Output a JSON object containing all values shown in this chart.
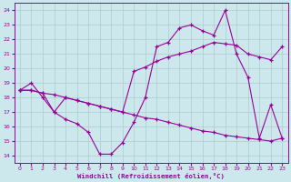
{
  "xlabel": "Windchill (Refroidissement éolien,°C)",
  "xlim": [
    -0.5,
    23.5
  ],
  "ylim": [
    13.5,
    24.5
  ],
  "xticks": [
    0,
    1,
    2,
    3,
    4,
    5,
    6,
    7,
    8,
    9,
    10,
    11,
    12,
    13,
    14,
    15,
    16,
    17,
    18,
    19,
    20,
    21,
    22,
    23
  ],
  "yticks": [
    14,
    15,
    16,
    17,
    18,
    19,
    20,
    21,
    22,
    23,
    24
  ],
  "bg_color": "#cde8ec",
  "line_color": "#990099",
  "grid_color": "#aacccc",
  "line1_x": [
    0,
    1,
    2,
    3,
    4,
    5,
    6,
    7,
    8,
    9,
    10,
    11,
    12,
    13,
    14,
    15,
    16,
    17,
    18,
    19,
    20,
    21,
    22,
    23
  ],
  "line1_y": [
    18.5,
    19.0,
    18.0,
    17.0,
    16.5,
    16.2,
    15.6,
    14.1,
    14.1,
    14.9,
    16.3,
    18.0,
    21.5,
    21.8,
    22.8,
    23.0,
    22.6,
    22.3,
    24.0,
    21.0,
    19.4,
    15.2,
    17.5,
    15.2
  ],
  "line2_x": [
    0,
    1,
    2,
    3,
    4,
    5,
    6,
    7,
    8,
    9,
    10,
    11,
    12,
    13,
    14,
    15,
    16,
    17,
    18,
    19,
    20,
    21,
    22,
    23
  ],
  "line2_y": [
    18.5,
    18.5,
    18.3,
    18.2,
    18.0,
    17.8,
    17.6,
    17.4,
    17.2,
    17.0,
    16.8,
    16.6,
    16.5,
    16.3,
    16.1,
    15.9,
    15.7,
    15.6,
    15.4,
    15.3,
    15.2,
    15.1,
    15.0,
    15.2
  ],
  "line3_x": [
    0,
    1,
    2,
    3,
    4,
    5,
    6,
    7,
    8,
    9,
    10,
    11,
    12,
    13,
    14,
    15,
    16,
    17,
    18,
    19,
    20,
    21,
    22,
    23
  ],
  "line3_y": [
    18.5,
    18.5,
    18.3,
    17.0,
    18.0,
    17.8,
    17.6,
    17.4,
    17.2,
    17.0,
    19.8,
    20.1,
    20.5,
    20.8,
    21.0,
    21.2,
    21.5,
    21.8,
    21.7,
    21.6,
    21.0,
    20.8,
    20.6,
    21.5
  ]
}
